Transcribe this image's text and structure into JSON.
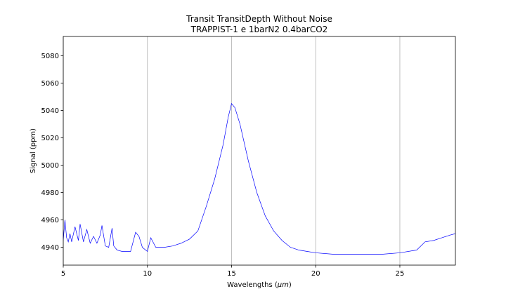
{
  "chart_data": {
    "type": "line",
    "title_line1": "Transit TransitDepth Without Noise",
    "title_line2": "TRAPPIST-1 e 1barN2 0.4barCO2",
    "xlabel_prefix": "Wavelengths (",
    "xlabel_symbol": "μm",
    "xlabel_suffix": ")",
    "ylabel": "Signal (ppm)",
    "xlim": [
      5,
      28.3
    ],
    "ylim": [
      4927,
      5094
    ],
    "xticks": [
      5,
      10,
      15,
      20,
      25
    ],
    "yticks": [
      4940,
      4960,
      4980,
      5000,
      5020,
      5040,
      5060,
      5080
    ],
    "xgrid": true,
    "ygrid": false,
    "line_color": "#0000ff",
    "series": [
      {
        "x": [
          5.0,
          5.1,
          5.2,
          5.3,
          5.4,
          5.5,
          5.7,
          5.9,
          6.0,
          6.2,
          6.4,
          6.6,
          6.8,
          7.0,
          7.2,
          7.3,
          7.5,
          7.7,
          7.9,
          8.0,
          8.2,
          8.5,
          9.0,
          9.3,
          9.5,
          9.7,
          10.0,
          10.2,
          10.5,
          10.8,
          11.0,
          11.5,
          12.0,
          12.5,
          13.0,
          13.5,
          14.0,
          14.5,
          14.8,
          15.0,
          15.2,
          15.5,
          16.0,
          16.5,
          17.0,
          17.5,
          18.0,
          18.5,
          19.0,
          19.5,
          20.0,
          21.0,
          22.0,
          23.0,
          24.0,
          25.0,
          26.0,
          26.5,
          27.0,
          27.5,
          28.0,
          28.3
        ],
        "y": [
          4945,
          4960,
          4947,
          4944,
          4950,
          4944,
          4955,
          4945,
          4957,
          4944,
          4953,
          4943,
          4948,
          4943,
          4949,
          4956,
          4941,
          4940,
          4954,
          4941,
          4938,
          4937,
          4937,
          4951,
          4948,
          4940,
          4937,
          4947,
          4940,
          4940,
          4940,
          4941,
          4943,
          4946,
          4952,
          4970,
          4990,
          5015,
          5035,
          5045,
          5042,
          5030,
          5003,
          4980,
          4963,
          4952,
          4945,
          4940,
          4938,
          4937,
          4936,
          4935,
          4935,
          4935,
          4935,
          4936,
          4938,
          4944,
          4945,
          4947,
          4949,
          4950
        ]
      }
    ]
  }
}
